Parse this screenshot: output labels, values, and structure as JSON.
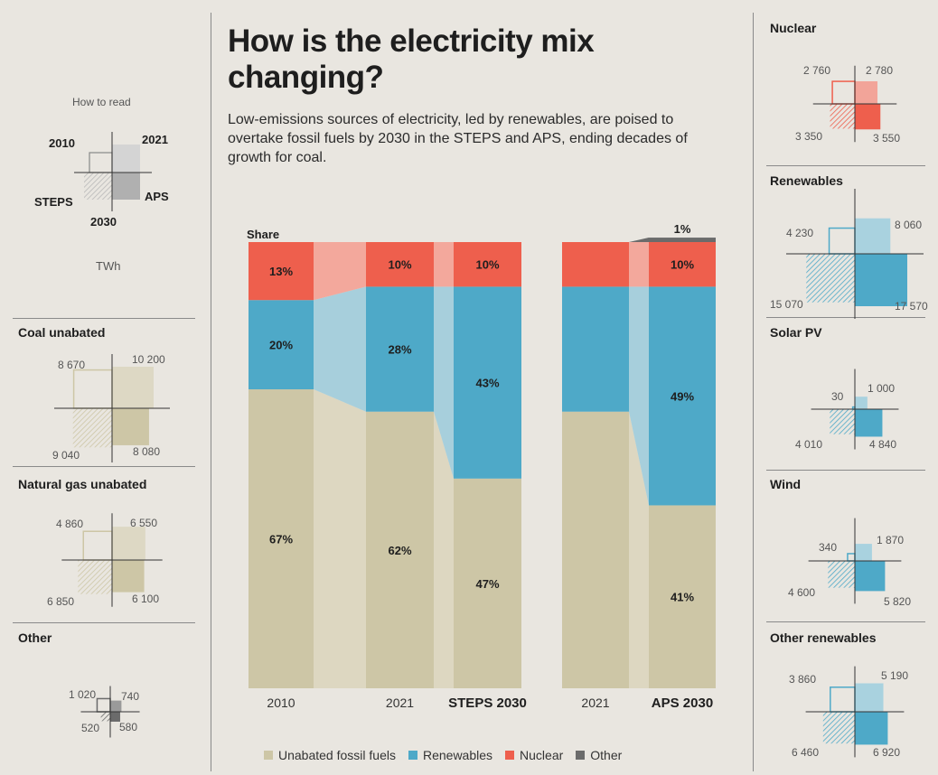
{
  "title": "How is the electricity mix changing?",
  "subtitle": "Low-emissions sources of electricity, led by renewables, are poised to overtake fossil fuels by 2030 in the STEPS and APS, ending decades of growth for coal.",
  "colors": {
    "fossil": "#cdc6a6",
    "fossil_flow": "#ddd7c1",
    "renewables": "#4ea9c8",
    "renewables_flow": "#a7cfdc",
    "nuclear": "#ee5f4d",
    "nuclear_flow": "#f3a89c",
    "other": "#6b6b6b"
  },
  "how_to_read": {
    "heading": "How to read",
    "y2010": "2010",
    "y2021": "2021",
    "steps": "STEPS",
    "aps": "APS",
    "y2030": "2030",
    "unit": "TWh"
  },
  "left_panels": [
    {
      "title": "Coal unabated",
      "v2010": "8 670",
      "v2021": "10 200",
      "steps": "9 040",
      "aps": "8 080",
      "n2010": 8670,
      "n2021": 10200,
      "nsteps": 9040,
      "naps": 8080
    },
    {
      "title": "Natural gas unabated",
      "v2010": "4 860",
      "v2021": "6 550",
      "steps": "6 850",
      "aps": "6 100",
      "n2010": 4860,
      "n2021": 6550,
      "nsteps": 6850,
      "naps": 6100
    },
    {
      "title": "Other",
      "v2010": "1 020",
      "v2021": "740",
      "steps": "520",
      "aps": "580",
      "n2010": 1020,
      "n2021": 740,
      "nsteps": 520,
      "naps": 580
    }
  ],
  "right_panels": [
    {
      "title": "Nuclear",
      "v2010": "2 760",
      "v2021": "2 780",
      "steps": "3 350",
      "aps": "3 550",
      "n2010": 2760,
      "n2021": 2780,
      "nsteps": 3350,
      "naps": 3550
    },
    {
      "title": "Renewables",
      "v2010": "4 230",
      "v2021": "8 060",
      "steps": "15 070",
      "aps": "17 570",
      "n2010": 4230,
      "n2021": 8060,
      "nsteps": 15070,
      "naps": 17570
    },
    {
      "title": "Solar PV",
      "v2010": "30",
      "v2021": "1 000",
      "steps": "4 010",
      "aps": "4 840",
      "n2010": 30,
      "n2021": 1000,
      "nsteps": 4010,
      "naps": 4840
    },
    {
      "title": "Wind",
      "v2010": "340",
      "v2021": "1 870",
      "steps": "4 600",
      "aps": "5 820",
      "n2010": 340,
      "n2021": 1870,
      "nsteps": 4600,
      "naps": 5820
    },
    {
      "title": "Other renewables",
      "v2010": "3 860",
      "v2021": "5 190",
      "steps": "6 460",
      "aps": "6 920",
      "n2010": 3860,
      "n2021": 5190,
      "nsteps": 6460,
      "naps": 6920
    }
  ],
  "chart_data": {
    "type": "bar",
    "stacked": true,
    "ylabel": "Share",
    "categories": [
      "2010",
      "2021",
      "STEPS 2030",
      "2021",
      "APS 2030"
    ],
    "series": [
      {
        "name": "Unabated fossil fuels",
        "values": [
          67,
          62,
          47,
          62,
          41
        ],
        "labels": [
          "67%",
          "62%",
          "47%",
          "",
          "41%"
        ]
      },
      {
        "name": "Renewables",
        "values": [
          20,
          28,
          43,
          28,
          49
        ],
        "labels": [
          "20%",
          "28%",
          "43%",
          "",
          "49%"
        ]
      },
      {
        "name": "Nuclear",
        "values": [
          13,
          10,
          10,
          10,
          10
        ],
        "labels": [
          "13%",
          "10%",
          "10%",
          "",
          "10%"
        ]
      },
      {
        "name": "Other",
        "values": [
          0,
          0,
          0,
          0,
          1
        ],
        "labels": [
          "",
          "",
          "",
          "",
          "1%"
        ]
      }
    ],
    "ylim": [
      0,
      100
    ],
    "legend": [
      "Unabated fossil fuels",
      "Renewables",
      "Nuclear",
      "Other"
    ],
    "legend_position": "bottom"
  }
}
